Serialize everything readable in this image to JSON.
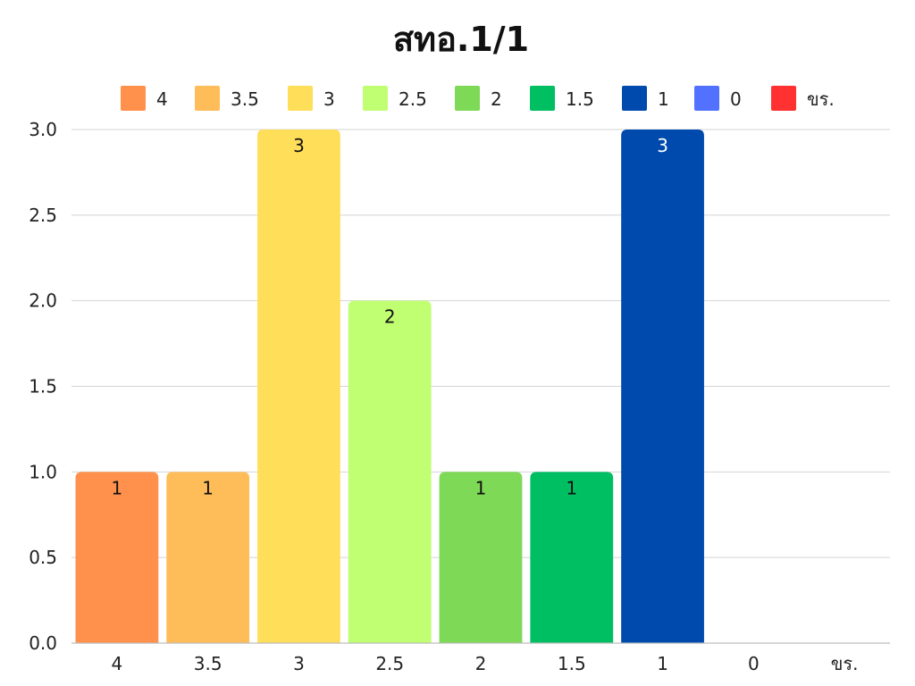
{
  "chart_data": {
    "type": "bar",
    "title": "สทอ.1/1",
    "xlabel": "",
    "ylabel": "",
    "categories": [
      "4",
      "3.5",
      "3",
      "2.5",
      "2",
      "1.5",
      "1",
      "0",
      "ขร."
    ],
    "values": [
      1,
      1,
      3,
      2,
      1,
      1,
      3,
      0,
      0
    ],
    "data_labels": [
      "1",
      "1",
      "3",
      "2",
      "1",
      "1",
      "3",
      "",
      ""
    ],
    "colors": [
      "#ff914d",
      "#ffbd59",
      "#ffde59",
      "#c1ff72",
      "#7ed957",
      "#00bf63",
      "#004aad",
      "#5271ff",
      "#ff3131"
    ],
    "data_label_colors": [
      "#111111",
      "#111111",
      "#111111",
      "#111111",
      "#111111",
      "#111111",
      "#ffffff",
      "#111111",
      "#111111"
    ],
    "ylim": [
      0,
      3
    ],
    "yticks": [
      "0.0",
      "0.5",
      "1.0",
      "1.5",
      "2.0",
      "2.5",
      "3.0"
    ],
    "grid": true,
    "legend": {
      "placement": "top",
      "entries": [
        "4",
        "3.5",
        "3",
        "2.5",
        "2",
        "1.5",
        "1",
        "0",
        "ขร."
      ]
    }
  }
}
